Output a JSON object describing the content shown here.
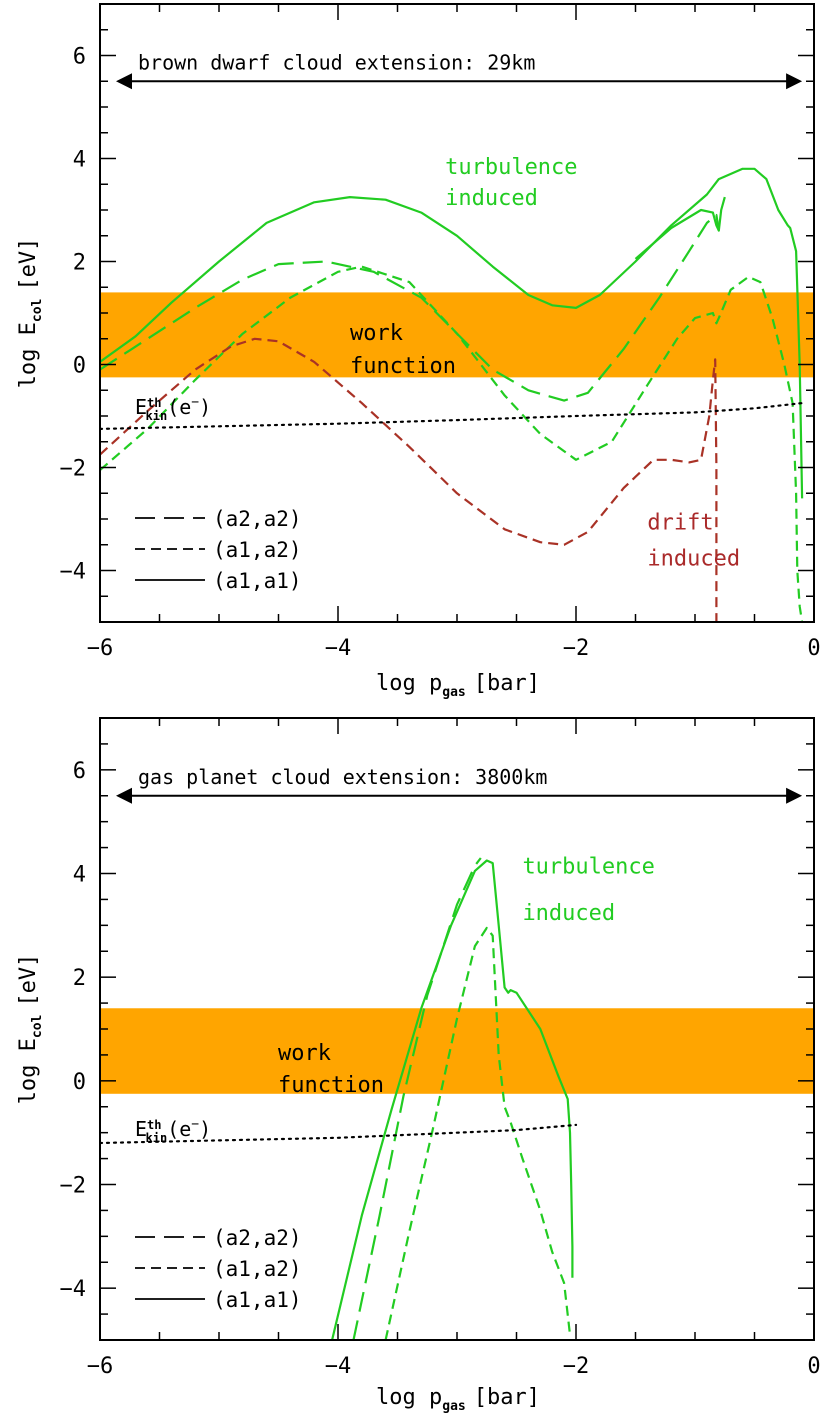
{
  "chart_data": [
    {
      "type": "line",
      "xlabel": "log p",
      "xlabel_sub": "gas",
      "xlabel_unit": "[bar]",
      "ylabel": "log E",
      "ylabel_sub": "col",
      "ylabel_unit": "[eV]",
      "xlim": [
        -6,
        0
      ],
      "ylim": [
        -5,
        7
      ],
      "x_ticks": [
        -6,
        -4,
        -2,
        0
      ],
      "x_tick_labels": [
        "−6",
        "−4",
        "−2",
        "0"
      ],
      "y_ticks": [
        -4,
        -2,
        0,
        2,
        4,
        6
      ],
      "y_tick_labels": [
        "−4",
        "−2",
        "0",
        "2",
        "4",
        "6"
      ],
      "extension_arrow": {
        "label": "brown dwarf cloud extension: 29km",
        "x": [
          -6,
          -0.1
        ],
        "y": 5.5
      },
      "work_function_band": {
        "label_line1": "work",
        "label_line2": "function",
        "y": [
          -0.25,
          1.4
        ],
        "color": "#FFA500"
      },
      "annotations": [
        {
          "text": "turbulence",
          "color": "#22CC22",
          "x": -3.1,
          "y": 3.7
        },
        {
          "text": "induced",
          "color": "#22CC22",
          "x": -3.1,
          "y": 3.1
        },
        {
          "text": "drift",
          "color": "#AA2A2A",
          "x": -1.4,
          "y": -3.2
        },
        {
          "text": "induced",
          "color": "#AA2A2A",
          "x": -1.4,
          "y": -3.9
        }
      ],
      "ekin_label": {
        "base": "E",
        "sup": "th",
        "sub": "kin",
        "suffix": "(e",
        "charge": "−",
        "close": ")"
      },
      "legend": [
        {
          "label": "(a2,a2)",
          "style": "long-dash"
        },
        {
          "label": "(a1,a2)",
          "style": "short-dash"
        },
        {
          "label": "(a1,a1)",
          "style": "solid"
        }
      ],
      "series": [
        {
          "style": "solid",
          "color": "#22CC22",
          "x": [
            -6.0,
            -5.7,
            -5.4,
            -5.0,
            -4.6,
            -4.2,
            -3.9,
            -3.6,
            -3.3,
            -3.0,
            -2.7,
            -2.4,
            -2.2,
            -2.0,
            -1.8,
            -1.5,
            -1.2,
            -0.9,
            -0.8,
            -0.6,
            -0.5,
            -0.4,
            -0.3,
            -0.22,
            -0.2,
            -0.15,
            -0.12,
            -0.1
          ],
          "y": [
            0.05,
            0.55,
            1.2,
            2.0,
            2.75,
            3.15,
            3.25,
            3.2,
            2.95,
            2.5,
            1.9,
            1.35,
            1.15,
            1.1,
            1.35,
            2.0,
            2.7,
            3.3,
            3.6,
            3.8,
            3.8,
            3.6,
            3.0,
            2.7,
            2.65,
            2.2,
            0.0,
            -2.6
          ]
        },
        {
          "style": "solid",
          "color": "#22CC22",
          "x": [
            -1.5,
            -1.2,
            -0.95,
            -0.85,
            -0.82,
            -0.8,
            -0.78,
            -0.75
          ],
          "y": [
            2.05,
            2.65,
            3.0,
            2.95,
            2.7,
            2.6,
            3.0,
            3.25
          ]
        },
        {
          "style": "long-dash",
          "color": "#22CC22",
          "x": [
            -6.0,
            -5.6,
            -5.2,
            -4.8,
            -4.5,
            -4.1,
            -3.7,
            -3.3,
            -3.0,
            -2.7,
            -2.4,
            -2.1,
            -1.9,
            -1.6,
            -1.3,
            -1.05,
            -0.9,
            -0.82,
            -0.8
          ],
          "y": [
            -0.1,
            0.5,
            1.1,
            1.65,
            1.95,
            2.0,
            1.8,
            1.3,
            0.6,
            -0.1,
            -0.5,
            -0.7,
            -0.55,
            0.3,
            1.3,
            2.2,
            2.75,
            2.9,
            2.6
          ]
        },
        {
          "style": "short-dash",
          "color": "#22CC22",
          "x": [
            -6.0,
            -5.6,
            -5.2,
            -4.8,
            -4.4,
            -4.0,
            -3.8,
            -3.4,
            -3.0,
            -2.6,
            -2.3,
            -2.0,
            -1.7,
            -1.4,
            -1.15,
            -1.0,
            -0.85,
            -0.82,
            -0.8,
            -0.7,
            -0.55,
            -0.45,
            -0.35,
            -0.25,
            -0.18,
            -0.15,
            -0.14,
            -0.12,
            -0.1
          ],
          "y": [
            -2.05,
            -1.25,
            -0.3,
            0.6,
            1.3,
            1.8,
            1.9,
            1.6,
            0.6,
            -0.6,
            -1.35,
            -1.85,
            -1.5,
            -0.4,
            0.5,
            0.9,
            1.0,
            0.8,
            0.9,
            1.45,
            1.7,
            1.6,
            0.9,
            0.0,
            -0.75,
            -2.5,
            -4.0,
            -4.7,
            -5.0
          ]
        },
        {
          "style": "short-dash",
          "color": "#A93226",
          "x": [
            -6.0,
            -5.6,
            -5.2,
            -4.9,
            -4.7,
            -4.5,
            -4.2,
            -3.8,
            -3.4,
            -3.0,
            -2.6,
            -2.3,
            -2.1,
            -1.9,
            -1.6,
            -1.35,
            -1.2,
            -1.05,
            -0.95,
            -0.88,
            -0.85,
            -0.83,
            -0.82,
            -0.82
          ],
          "y": [
            -1.75,
            -0.9,
            -0.1,
            0.35,
            0.5,
            0.45,
            0.05,
            -0.75,
            -1.6,
            -2.5,
            -3.2,
            -3.45,
            -3.5,
            -3.25,
            -2.4,
            -1.85,
            -1.85,
            -1.9,
            -1.85,
            -1.0,
            -0.3,
            0.1,
            -2.0,
            -5.0
          ]
        },
        {
          "style": "dotted",
          "color": "#000000",
          "x": [
            -6.0,
            -5.0,
            -4.0,
            -3.0,
            -2.0,
            -1.0,
            -0.5,
            -0.1
          ],
          "y": [
            -1.25,
            -1.2,
            -1.15,
            -1.08,
            -1.0,
            -0.93,
            -0.85,
            -0.75
          ]
        }
      ]
    },
    {
      "type": "line",
      "xlabel": "log p",
      "xlabel_sub": "gas",
      "xlabel_unit": "[bar]",
      "ylabel": "log E",
      "ylabel_sub": "col",
      "ylabel_unit": "[eV]",
      "xlim": [
        -6,
        0
      ],
      "ylim": [
        -5,
        7
      ],
      "x_ticks": [
        -6,
        -4,
        -2,
        0
      ],
      "x_tick_labels": [
        "−6",
        "−4",
        "−2",
        "0"
      ],
      "y_ticks": [
        -4,
        -2,
        0,
        2,
        4,
        6
      ],
      "y_tick_labels": [
        "−4",
        "−2",
        "0",
        "2",
        "4",
        "6"
      ],
      "extension_arrow": {
        "label": "gas planet cloud extension: 3800km",
        "x": [
          -6,
          -0.1
        ],
        "y": 5.5
      },
      "work_function_band": {
        "label_line1": "work",
        "label_line2": "function",
        "y": [
          -0.25,
          1.4
        ],
        "color": "#FFA500"
      },
      "annotations": [
        {
          "text": "turbulence",
          "color": "#22CC22",
          "x": -2.45,
          "y": 4.0
        },
        {
          "text": "induced",
          "color": "#22CC22",
          "x": -2.45,
          "y": 3.1
        }
      ],
      "ekin_label": {
        "base": "E",
        "sup": "th",
        "sub": "kin",
        "suffix": "(e",
        "charge": "−",
        "close": ")"
      },
      "legend": [
        {
          "label": "(a2,a2)",
          "style": "long-dash"
        },
        {
          "label": "(a1,a2)",
          "style": "short-dash"
        },
        {
          "label": "(a1,a1)",
          "style": "solid"
        }
      ],
      "series": [
        {
          "style": "solid",
          "color": "#22CC22",
          "x": [
            -4.05,
            -3.8,
            -3.55,
            -3.3,
            -3.05,
            -2.85,
            -2.75,
            -2.7,
            -2.65,
            -2.6,
            -2.57,
            -2.55,
            -2.5,
            -2.3,
            -2.15,
            -2.07,
            -2.05,
            -2.04,
            -2.03,
            -2.03
          ],
          "y": [
            -5.0,
            -2.6,
            -0.55,
            1.4,
            3.0,
            4.05,
            4.25,
            4.2,
            3.0,
            1.8,
            1.7,
            1.75,
            1.7,
            1.0,
            0.1,
            -0.35,
            -1.0,
            -2.0,
            -3.2,
            -3.8
          ]
        },
        {
          "style": "long-dash",
          "color": "#22CC22",
          "x": [
            -3.87,
            -3.65,
            -3.45,
            -3.25,
            -3.0,
            -2.85,
            -2.8
          ],
          "y": [
            -5.0,
            -2.6,
            -0.3,
            1.65,
            3.4,
            4.15,
            4.3
          ]
        },
        {
          "style": "short-dash",
          "color": "#22CC22",
          "x": [
            -3.6,
            -3.4,
            -3.2,
            -3.0,
            -2.85,
            -2.75,
            -2.7,
            -2.65,
            -2.6,
            -2.55,
            -2.45,
            -2.3,
            -2.2,
            -2.1,
            -2.05
          ],
          "y": [
            -5.0,
            -2.9,
            -0.9,
            1.2,
            2.6,
            2.95,
            2.8,
            0.5,
            -0.5,
            -0.8,
            -1.5,
            -2.5,
            -3.3,
            -3.9,
            -4.9
          ]
        },
        {
          "style": "dotted",
          "color": "#000000",
          "x": [
            -6.0,
            -5.0,
            -4.0,
            -3.0,
            -2.5,
            -2.0
          ],
          "y": [
            -1.2,
            -1.15,
            -1.1,
            -1.0,
            -0.95,
            -0.85
          ]
        }
      ]
    }
  ]
}
